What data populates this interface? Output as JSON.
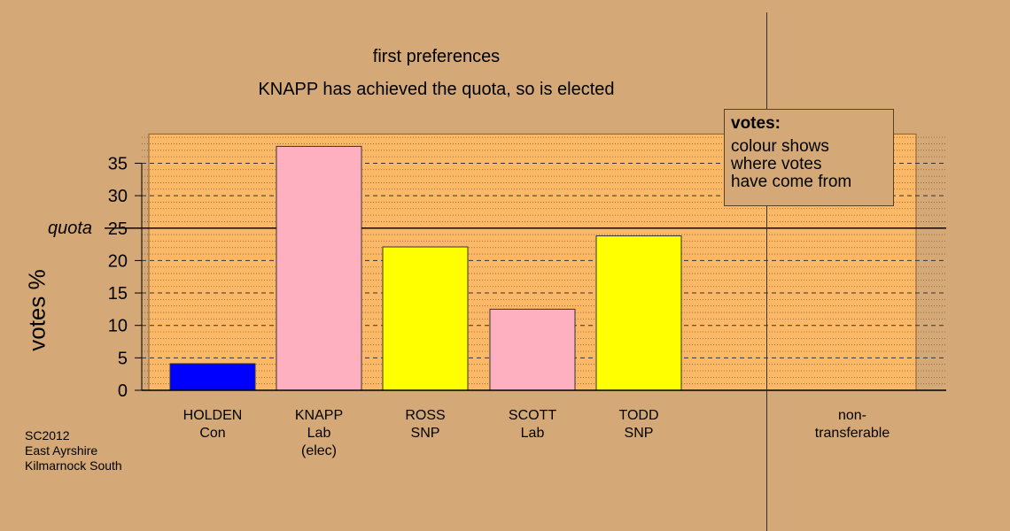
{
  "header": {
    "title": "first preferences",
    "subtitle": "KNAPP has achieved the quota, so is elected"
  },
  "footer": {
    "line1": "SC2012",
    "line2": "East Ayrshire",
    "line3": "Kilmarnock South"
  },
  "legend": {
    "title": "votes:",
    "line1": "colour shows",
    "line2": "where votes",
    "line3": "have come from"
  },
  "chart_data": {
    "type": "bar",
    "title": "first preferences",
    "subtitle": "KNAPP has achieved the quota, so is elected",
    "ylabel": "votes %",
    "ylim": [
      0,
      39.5
    ],
    "yticks": [
      0,
      5,
      10,
      15,
      20,
      25,
      30,
      35
    ],
    "quota": 25,
    "quota_label": "quota",
    "grid": true,
    "categories": [
      {
        "name": "HOLDEN",
        "party": "Con",
        "note": "",
        "value": 4.1,
        "color": "#0000ff"
      },
      {
        "name": "KNAPP",
        "party": "Lab",
        "note": "(elec)",
        "value": 37.6,
        "color": "#ffb0c0"
      },
      {
        "name": "ROSS",
        "party": "SNP",
        "note": "",
        "value": 22.1,
        "color": "#ffff00"
      },
      {
        "name": "SCOTT",
        "party": "Lab",
        "note": "",
        "value": 12.5,
        "color": "#ffb0c0"
      },
      {
        "name": "TODD",
        "party": "SNP",
        "note": "",
        "value": 23.8,
        "color": "#ffff00"
      }
    ],
    "nontransferable": {
      "line1": "non-",
      "line2": "transferable",
      "value": 0
    }
  }
}
